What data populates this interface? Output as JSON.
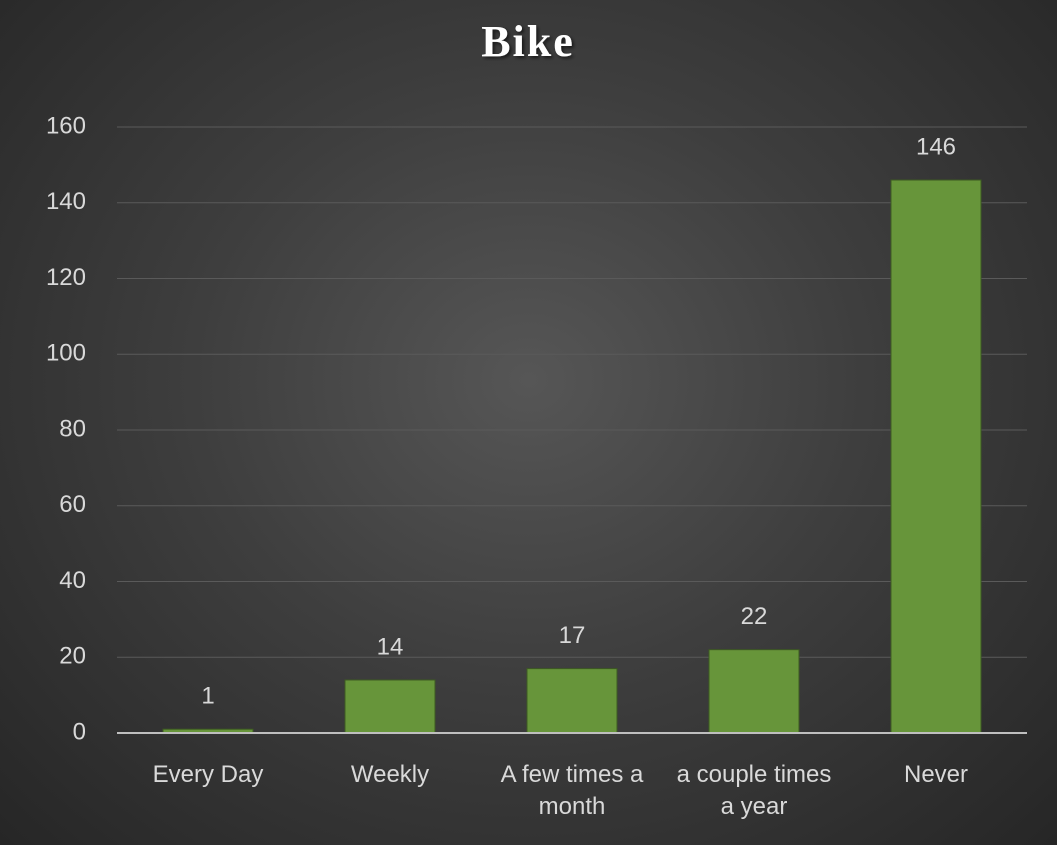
{
  "chart_data": {
    "type": "bar",
    "title": "Bike",
    "categories": [
      "Every Day",
      "Weekly",
      "A few times a month",
      "a couple times a year",
      "Never"
    ],
    "values": [
      1,
      14,
      17,
      22,
      146
    ],
    "color": "#67953a",
    "ylim": [
      0,
      160
    ],
    "yticks": [
      0,
      20,
      40,
      60,
      80,
      100,
      120,
      140,
      160
    ],
    "grid": true
  }
}
